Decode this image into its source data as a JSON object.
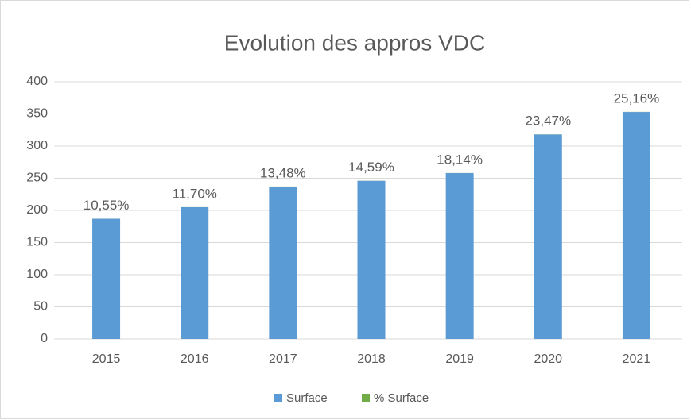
{
  "chart_data": {
    "type": "stacked_bar",
    "title": "Evolution des appros VDC",
    "categories": [
      "2015",
      "2016",
      "2017",
      "2018",
      "2019",
      "2020",
      "2021"
    ],
    "series": [
      {
        "name": "Surface",
        "color": "#5b9bd5",
        "values": [
          187,
          205,
          237,
          246,
          258,
          318,
          353
        ]
      },
      {
        "name": "% Surface",
        "color": "#70ad47",
        "values": [
          0.1055,
          0.117,
          0.1348,
          0.1459,
          0.1814,
          0.2347,
          0.2516
        ],
        "value_labels": [
          "10,55%",
          "11,70%",
          "13,48%",
          "14,59%",
          "18,14%",
          "23,47%",
          "25,16%"
        ]
      }
    ],
    "ylim": [
      0,
      400
    ],
    "yticks": [
      0,
      50,
      100,
      150,
      200,
      250,
      300,
      350,
      400
    ],
    "grid": true,
    "legend": "bottom"
  }
}
